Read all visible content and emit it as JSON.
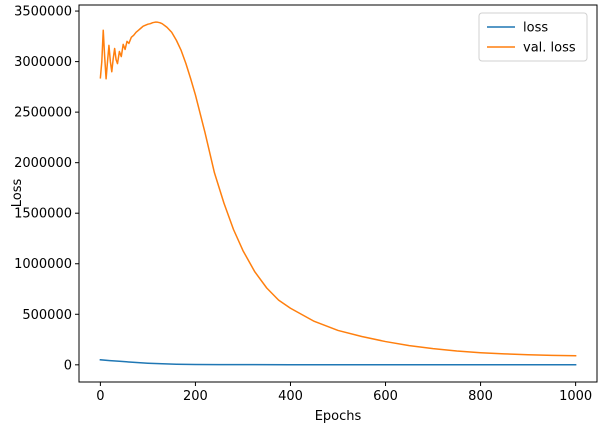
{
  "chart_data": {
    "type": "line",
    "title": "",
    "xlabel": "Epochs",
    "ylabel": "Loss",
    "xlim": [
      -45,
      1045
    ],
    "ylim": [
      -170000,
      3560000
    ],
    "xticks": [
      0,
      200,
      400,
      600,
      800,
      1000
    ],
    "yticks": [
      0,
      500000,
      1000000,
      1500000,
      2000000,
      2500000,
      3000000,
      3500000
    ],
    "grid": false,
    "legend": "upper-right",
    "series": [
      {
        "name": "loss",
        "color": "#1f77b4",
        "x": [
          0,
          20,
          40,
          60,
          80,
          100,
          130,
          160,
          200,
          250,
          300,
          400,
          500,
          600,
          700,
          800,
          900,
          1000
        ],
        "y": [
          50000,
          42000,
          35000,
          28000,
          22000,
          16000,
          10000,
          6000,
          3000,
          2000,
          1500,
          1000,
          800,
          700,
          600,
          500,
          400,
          300
        ]
      },
      {
        "name": "val. loss",
        "color": "#ff7f0e",
        "x": [
          0,
          3,
          6,
          9,
          12,
          15,
          18,
          21,
          24,
          27,
          30,
          33,
          36,
          40,
          44,
          48,
          52,
          56,
          60,
          65,
          70,
          75,
          80,
          85,
          90,
          95,
          100,
          105,
          110,
          115,
          120,
          125,
          130,
          140,
          150,
          160,
          170,
          180,
          190,
          200,
          220,
          240,
          260,
          280,
          300,
          325,
          350,
          375,
          400,
          450,
          500,
          550,
          600,
          650,
          700,
          750,
          800,
          850,
          900,
          950,
          1000
        ],
        "y": [
          2840000,
          3000000,
          3310000,
          3050000,
          2830000,
          3000000,
          3160000,
          3000000,
          2900000,
          3030000,
          3130000,
          3020000,
          2980000,
          3100000,
          3050000,
          3170000,
          3120000,
          3200000,
          3180000,
          3240000,
          3260000,
          3290000,
          3310000,
          3330000,
          3350000,
          3360000,
          3370000,
          3375000,
          3385000,
          3390000,
          3390000,
          3385000,
          3375000,
          3340000,
          3290000,
          3210000,
          3110000,
          2980000,
          2830000,
          2670000,
          2300000,
          1900000,
          1600000,
          1340000,
          1130000,
          920000,
          760000,
          640000,
          560000,
          430000,
          340000,
          280000,
          230000,
          190000,
          160000,
          137000,
          120000,
          108000,
          100000,
          94000,
          90000
        ]
      }
    ]
  }
}
